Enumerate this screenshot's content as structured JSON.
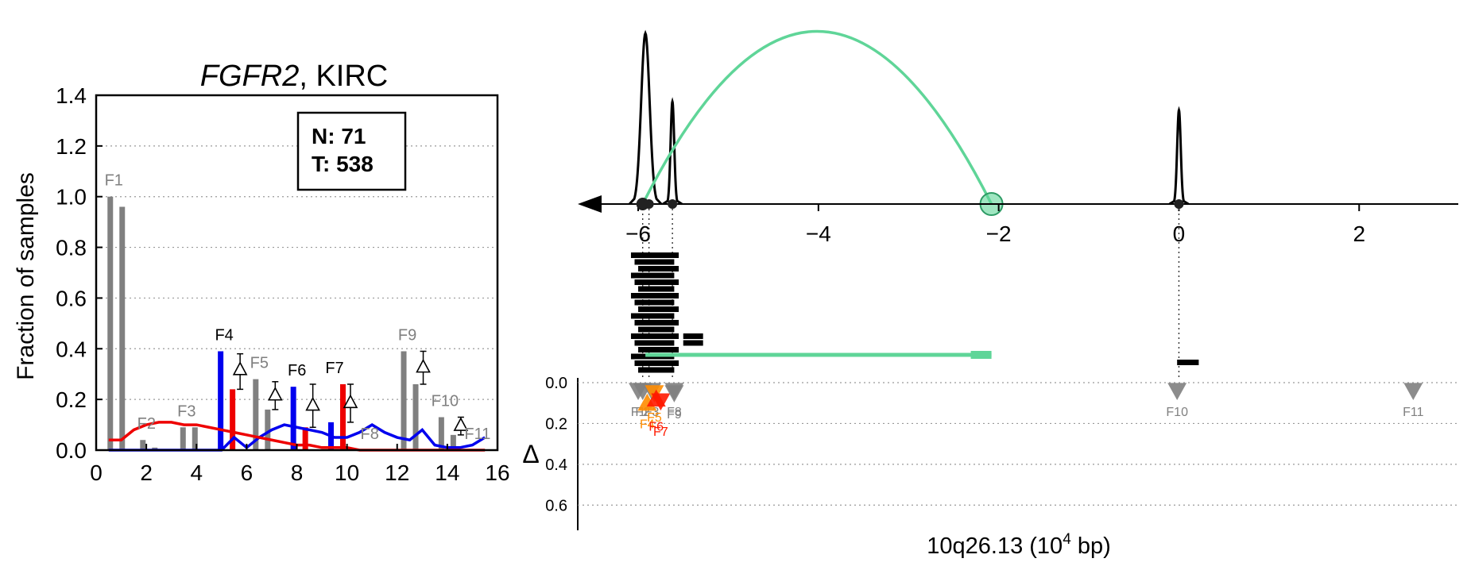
{
  "chart_data": [
    {
      "type": "bar",
      "title_gene": "FGFR2",
      "title_suffix": ", KIRC",
      "ylabel": "Fraction of samples",
      "xlabel": "",
      "xlim": [
        0,
        16
      ],
      "ylim": [
        0,
        1.4
      ],
      "xticks": [
        "0",
        "2",
        "4",
        "6",
        "8",
        "10",
        "12",
        "14",
        "16"
      ],
      "yticks": [
        "0.0",
        "0.2",
        "0.4",
        "0.6",
        "0.8",
        "1.0",
        "1.2",
        "1.4"
      ],
      "grid": "horizontal dotted",
      "counts_box": {
        "n_label": "N: 71",
        "t_label": "T: 538"
      },
      "colors": {
        "neutral": "#808080",
        "normal": "#0000ee",
        "tumor": "#ee0000",
        "delta_line": "#000000"
      },
      "fragments": [
        {
          "label": "F1",
          "x": 0.8,
          "normal": 1.0,
          "tumor": 0.96,
          "highlight": false,
          "delta": null
        },
        {
          "label": "F2",
          "x": 2.1,
          "normal": 0.04,
          "tumor": 0.01,
          "highlight": false,
          "delta": null
        },
        {
          "label": "F3",
          "x": 3.7,
          "normal": 0.09,
          "tumor": 0.09,
          "highlight": false,
          "delta": null
        },
        {
          "label": "F4",
          "x": 5.2,
          "normal": 0.39,
          "tumor": 0.24,
          "highlight": true,
          "delta": 0.32,
          "delta_err": [
            0.24,
            0.38
          ]
        },
        {
          "label": "F5",
          "x": 6.6,
          "normal": 0.28,
          "tumor": 0.16,
          "highlight": false,
          "delta": 0.22,
          "delta_err": [
            0.16,
            0.27
          ]
        },
        {
          "label": "F6",
          "x": 8.1,
          "normal": 0.25,
          "tumor": 0.09,
          "highlight": true,
          "delta": 0.18,
          "delta_err": [
            0.09,
            0.26
          ]
        },
        {
          "label": "F7",
          "x": 9.6,
          "normal": 0.11,
          "tumor": 0.26,
          "highlight": true,
          "delta": 0.19,
          "delta_err": [
            0.11,
            0.26
          ]
        },
        {
          "label": "F8",
          "x": 11.0,
          "normal": 0.0,
          "tumor": 0.0,
          "highlight": false,
          "delta": null
        },
        {
          "label": "F9",
          "x": 12.5,
          "normal": 0.39,
          "tumor": 0.26,
          "highlight": false,
          "delta": 0.33,
          "delta_err": [
            0.26,
            0.39
          ]
        },
        {
          "label": "F10",
          "x": 14.0,
          "normal": 0.13,
          "tumor": 0.06,
          "highlight": false,
          "delta": 0.1,
          "delta_err": [
            0.06,
            0.13
          ]
        },
        {
          "label": "F11",
          "x": 15.3,
          "normal": 0.0,
          "tumor": 0.0,
          "highlight": false,
          "delta": null
        }
      ],
      "series": [
        {
          "color": "#0000ee",
          "x": [
            0.5,
            1.0,
            1.5,
            2.0,
            2.5,
            3.0,
            3.5,
            4.0,
            4.5,
            5.0,
            5.5,
            6.0,
            6.5,
            7.0,
            7.5,
            8.0,
            8.5,
            9.0,
            9.5,
            10.0,
            10.5,
            11.0,
            11.5,
            12.0,
            12.5,
            13.0,
            13.5,
            14.0,
            14.5,
            15.0,
            15.5
          ],
          "y": [
            0.0,
            0.0,
            0.0,
            0.0,
            0.0,
            0.0,
            0.0,
            0.0,
            0.0,
            0.0,
            0.05,
            0.01,
            0.05,
            0.08,
            0.1,
            0.09,
            0.08,
            0.07,
            0.05,
            0.05,
            0.07,
            0.1,
            0.07,
            0.05,
            0.04,
            0.08,
            0.02,
            0.01,
            0.01,
            0.02,
            0.05
          ]
        },
        {
          "color": "#ee0000",
          "x": [
            0.5,
            1.0,
            1.5,
            2.0,
            2.5,
            3.0,
            3.5,
            4.0,
            4.5,
            5.0,
            5.5,
            6.0,
            6.5,
            7.0,
            7.5,
            8.0,
            8.5,
            9.0,
            9.5,
            10.0,
            10.5,
            11.0,
            11.5,
            12.0,
            12.5,
            13.0,
            13.5,
            14.0,
            14.5,
            15.0,
            15.5
          ],
          "y": [
            0.04,
            0.04,
            0.08,
            0.1,
            0.11,
            0.11,
            0.1,
            0.1,
            0.09,
            0.08,
            0.07,
            0.06,
            0.05,
            0.04,
            0.03,
            0.02,
            0.02,
            0.01,
            0.01,
            0.01,
            0.0,
            0.0,
            0.0,
            0.0,
            0.0,
            0.0,
            0.0,
            0.0,
            0.0,
            0.0,
            0.0
          ]
        }
      ]
    },
    {
      "type": "line",
      "xlabel_main": "10q26.13 (10",
      "xlabel_sup": "4",
      "xlabel_tail": " bp)",
      "xlim": [
        -6.6,
        3.1
      ],
      "xticks": [
        -6,
        -4,
        -2,
        0,
        2
      ],
      "xtick_labels": [
        "−6",
        "−4",
        "−2",
        "0",
        "2"
      ],
      "coverage_peaks": [
        {
          "x": -5.92,
          "height": 1.0
        },
        {
          "x": -5.62,
          "height": 0.6
        },
        {
          "x": 0.0,
          "height": 0.55
        }
      ],
      "sites": [
        -5.95,
        -5.88,
        -5.62,
        0.0
      ],
      "arc": {
        "from": -5.95,
        "to": -2.08,
        "color": "#5fd598"
      },
      "arc_end_marker": {
        "x": -2.08
      },
      "read_bars": [
        {
          "x0": -6.08,
          "x1": -5.55,
          "count": 18
        },
        {
          "x0": -5.5,
          "x1": -5.28,
          "count": 2
        },
        {
          "x0": -0.02,
          "x1": 0.22,
          "count": 1
        }
      ],
      "junction_read": {
        "x0": -5.92,
        "x1": -2.08,
        "color": "#5fd598"
      },
      "delta_label": "Δ",
      "delta_ylim": [
        0.0,
        0.7
      ],
      "delta_ticks": [
        "0.0",
        "0.2",
        "0.4",
        "0.6"
      ],
      "delta_markers": [
        {
          "label": "F1",
          "x": -6.0,
          "delta": 0.0,
          "color": "#808080"
        },
        {
          "label": "F2",
          "x": -5.95,
          "delta": 0.0,
          "color": "#808080"
        },
        {
          "label": "F3",
          "x": -5.85,
          "delta": 0.0,
          "color": "#808080"
        },
        {
          "label": "F4",
          "x": -5.9,
          "delta": 0.1,
          "color": "#ff8c00",
          "up": true
        },
        {
          "label": "F5",
          "x": -5.82,
          "delta": 0.05,
          "color": "#ff8c00"
        },
        {
          "label": "F6",
          "x": -5.8,
          "delta": 0.08,
          "color": "#ff1a00",
          "up": true
        },
        {
          "label": "F7",
          "x": -5.75,
          "delta": 0.09,
          "color": "#ff1a00"
        },
        {
          "label": "F8",
          "x": -5.6,
          "delta": 0.0,
          "color": "#808080"
        },
        {
          "label": "F9",
          "x": -5.6,
          "delta": 0.05,
          "color": "#808080"
        },
        {
          "label": "F10",
          "x": -0.02,
          "delta": 0.0,
          "color": "#808080"
        },
        {
          "label": "F11",
          "x": 2.6,
          "delta": 0.0,
          "color": "#808080"
        }
      ]
    }
  ]
}
